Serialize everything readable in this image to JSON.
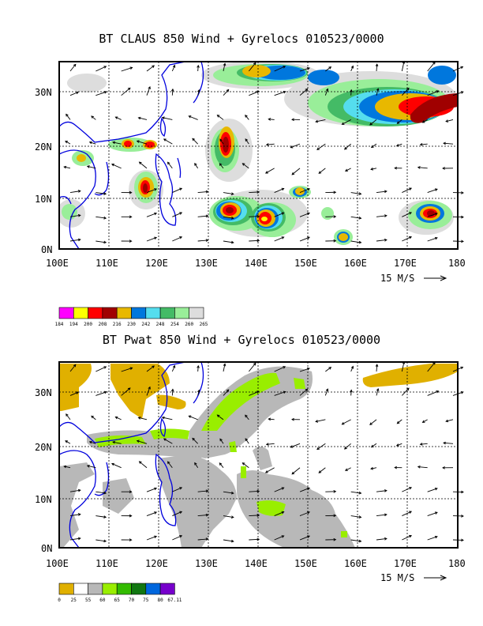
{
  "panels": [
    {
      "title": "BT CLAUS 850 Wind + Gyrelocs 010523/0000",
      "x_ticks": [
        "100E",
        "110E",
        "120E",
        "130E",
        "140E",
        "150E",
        "160E",
        "170E",
        "180"
      ],
      "y_ticks": [
        "30N",
        "20N",
        "10N",
        "0N"
      ],
      "vector_label": "15 M/S",
      "legend": {
        "labels": [
          "184",
          "194",
          "200",
          "208",
          "216",
          "230",
          "242",
          "248",
          "254",
          "260",
          "265"
        ],
        "colors": [
          "#ff00ff",
          "#ffff00",
          "#ff0000",
          "#a00000",
          "#e8b800",
          "#0077dd",
          "#55ddee",
          "#44bb66",
          "#99ee99",
          "#dddddd"
        ]
      }
    },
    {
      "title": "BT Pwat 850 Wind + Gyrelocs 010523/0000",
      "x_ticks": [
        "100E",
        "110E",
        "120E",
        "130E",
        "140E",
        "150E",
        "160E",
        "170E",
        "180"
      ],
      "y_ticks": [
        "30N",
        "20N",
        "10N",
        "0N"
      ],
      "vector_label": "15 M/S",
      "legend": {
        "labels": [
          "0",
          "25",
          "55",
          "60",
          "65",
          "70",
          "75",
          "80",
          "67.11"
        ],
        "colors": [
          "#e0b000",
          "#ffffff",
          "#b8b8b8",
          "#99ee00",
          "#33bb00",
          "#117711",
          "#0066dd",
          "#7700cc"
        ]
      }
    }
  ]
}
